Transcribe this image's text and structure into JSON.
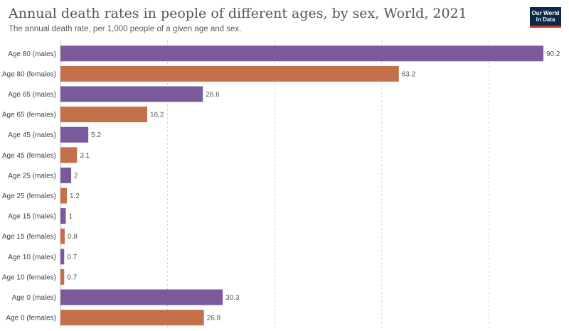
{
  "header": {
    "title": "Annual death rates in people of different ages, by sex, World, 2021",
    "subtitle": "The annual death rate, per 1,000 people of a given age and sex.",
    "logo_text": "Our World in Data"
  },
  "colors": {
    "males": "#7b5a9c",
    "females": "#c4714b",
    "grid": "#d6d6d6",
    "title": "#555555",
    "logo_bg": "#0b2a4a",
    "logo_accent": "#c8312f"
  },
  "chart_data": {
    "type": "bar",
    "orientation": "horizontal",
    "title": "Annual death rates in people of different ages, by sex, World, 2021",
    "subtitle": "The annual death rate, per 1,000 people of a given age and sex.",
    "xlim": [
      0,
      90.2
    ],
    "grid": "vertical-dashed",
    "categories": [
      "Age 80 (males)",
      "Age 80 (females)",
      "Age 65 (males)",
      "Age 65 (females)",
      "Age 45 (males)",
      "Age 45 (females)",
      "Age 25 (males)",
      "Age 25 (females)",
      "Age 15 (males)",
      "Age 15 (females)",
      "Age 10 (males)",
      "Age 10 (females)",
      "Age 0 (males)",
      "Age 0 (females)"
    ],
    "values": [
      90.2,
      63.2,
      26.6,
      16.2,
      5.2,
      3.1,
      2,
      1.2,
      1,
      0.8,
      0.7,
      0.7,
      30.3,
      26.8
    ],
    "value_labels": [
      "90.2",
      "63.2",
      "26.6",
      "16.2",
      "5.2",
      "3.1",
      "2",
      "1.2",
      "1",
      "0.8",
      "0.7",
      "0.7",
      "30.3",
      "26.8"
    ],
    "sex": [
      "males",
      "females",
      "males",
      "females",
      "males",
      "females",
      "males",
      "females",
      "males",
      "females",
      "males",
      "females",
      "males",
      "females"
    ]
  }
}
